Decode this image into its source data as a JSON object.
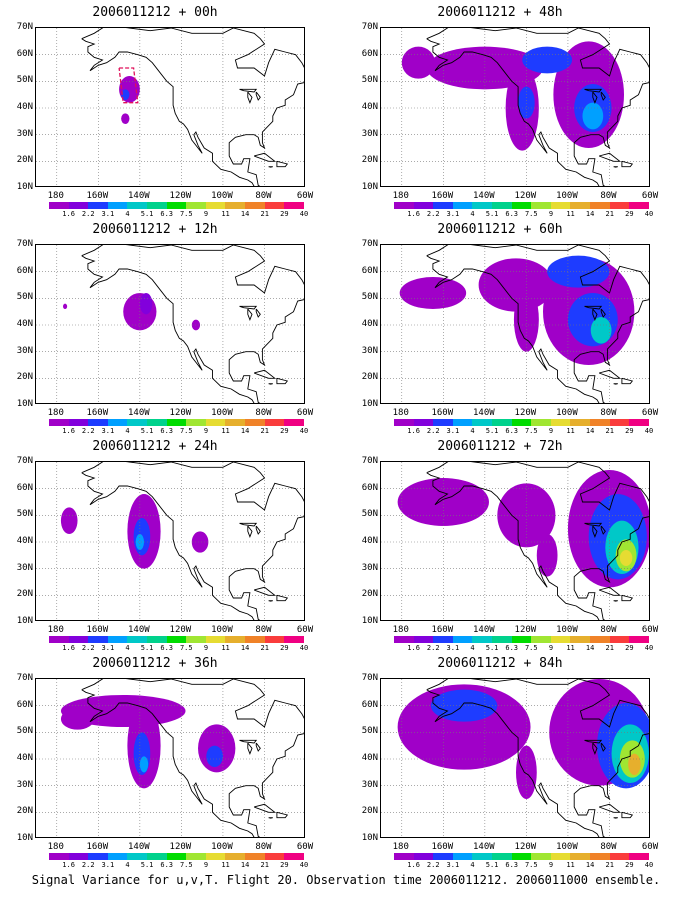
{
  "caption": "Signal Variance for u,v,T. Flight 20. Observation time 2006011212. 2006011000 ensemble.",
  "y_labels": [
    "70N",
    "60N",
    "50N",
    "40N",
    "30N",
    "20N",
    "10N"
  ],
  "x_labels": [
    "180",
    "160W",
    "140W",
    "120W",
    "100W",
    "80W",
    "60W"
  ],
  "colorbar_labels": [
    "1.6",
    "2.2",
    "3.1",
    "4",
    "5.1",
    "6.3",
    "7.5",
    "9",
    "11",
    "14",
    "21",
    "29",
    "40"
  ],
  "colorbar_colors": [
    "#a000c8",
    "#8200dc",
    "#1e3cff",
    "#00a0ff",
    "#00c8c8",
    "#00d28c",
    "#00dc00",
    "#a0e632",
    "#e6dc32",
    "#e6af2d",
    "#f08228",
    "#fa3c3c",
    "#f00082"
  ],
  "panels": [
    {
      "title": "2006011212 + 00h",
      "blobs": [
        {
          "lon": -145,
          "lat": 47,
          "rx": 5,
          "ry": 5,
          "level": 0
        },
        {
          "lon": -147,
          "lat": 45,
          "rx": 2,
          "ry": 2,
          "level": 2
        },
        {
          "lon": -147,
          "lat": 36,
          "rx": 2,
          "ry": 2,
          "level": 0
        }
      ],
      "box": true
    },
    {
      "title": "2006011212 + 12h",
      "blobs": [
        {
          "lon": -140,
          "lat": 45,
          "rx": 8,
          "ry": 7,
          "level": 0
        },
        {
          "lon": -137,
          "lat": 48,
          "rx": 3,
          "ry": 4,
          "level": 1
        },
        {
          "lon": -113,
          "lat": 40,
          "rx": 2,
          "ry": 2,
          "level": 0
        },
        {
          "lon": -176,
          "lat": 47,
          "rx": 1,
          "ry": 1,
          "level": 0
        }
      ]
    },
    {
      "title": "2006011212 + 24h",
      "blobs": [
        {
          "lon": -174,
          "lat": 48,
          "rx": 4,
          "ry": 5,
          "level": 0
        },
        {
          "lon": -138,
          "lat": 44,
          "rx": 8,
          "ry": 14,
          "level": 0
        },
        {
          "lon": -139,
          "lat": 42,
          "rx": 4,
          "ry": 7,
          "level": 2
        },
        {
          "lon": -140,
          "lat": 40,
          "rx": 2,
          "ry": 3,
          "level": 3
        },
        {
          "lon": -111,
          "lat": 40,
          "rx": 4,
          "ry": 4,
          "level": 0
        }
      ]
    },
    {
      "title": "2006011212 + 36h",
      "blobs": [
        {
          "lon": -170,
          "lat": 55,
          "rx": 8,
          "ry": 4,
          "level": 0
        },
        {
          "lon": -148,
          "lat": 58,
          "rx": 30,
          "ry": 6,
          "level": 0
        },
        {
          "lon": -138,
          "lat": 45,
          "rx": 8,
          "ry": 16,
          "level": 0
        },
        {
          "lon": -139,
          "lat": 42,
          "rx": 4,
          "ry": 8,
          "level": 2
        },
        {
          "lon": -138,
          "lat": 38,
          "rx": 2,
          "ry": 3,
          "level": 3
        },
        {
          "lon": -103,
          "lat": 44,
          "rx": 9,
          "ry": 9,
          "level": 0
        },
        {
          "lon": -104,
          "lat": 41,
          "rx": 4,
          "ry": 4,
          "level": 2
        }
      ]
    },
    {
      "title": "2006011212 + 48h",
      "blobs": [
        {
          "lon": -172,
          "lat": 57,
          "rx": 8,
          "ry": 6,
          "level": 0
        },
        {
          "lon": -140,
          "lat": 55,
          "rx": 28,
          "ry": 8,
          "level": 0
        },
        {
          "lon": -122,
          "lat": 40,
          "rx": 8,
          "ry": 16,
          "level": 0
        },
        {
          "lon": -120,
          "lat": 42,
          "rx": 4,
          "ry": 6,
          "level": 2
        },
        {
          "lon": -90,
          "lat": 45,
          "rx": 17,
          "ry": 20,
          "level": 0
        },
        {
          "lon": -88,
          "lat": 40,
          "rx": 9,
          "ry": 9,
          "level": 2
        },
        {
          "lon": -88,
          "lat": 37,
          "rx": 5,
          "ry": 5,
          "level": 3
        },
        {
          "lon": -110,
          "lat": 58,
          "rx": 12,
          "ry": 5,
          "level": 2
        }
      ]
    },
    {
      "title": "2006011212 + 60h",
      "blobs": [
        {
          "lon": -165,
          "lat": 52,
          "rx": 16,
          "ry": 6,
          "level": 0
        },
        {
          "lon": -125,
          "lat": 55,
          "rx": 18,
          "ry": 10,
          "level": 0
        },
        {
          "lon": -120,
          "lat": 42,
          "rx": 6,
          "ry": 12,
          "level": 0
        },
        {
          "lon": -90,
          "lat": 45,
          "rx": 22,
          "ry": 20,
          "level": 0
        },
        {
          "lon": -88,
          "lat": 42,
          "rx": 12,
          "ry": 10,
          "level": 2
        },
        {
          "lon": -84,
          "lat": 38,
          "rx": 5,
          "ry": 5,
          "level": 4
        },
        {
          "lon": -95,
          "lat": 60,
          "rx": 15,
          "ry": 6,
          "level": 2
        }
      ]
    },
    {
      "title": "2006011212 + 72h",
      "blobs": [
        {
          "lon": -160,
          "lat": 55,
          "rx": 22,
          "ry": 9,
          "level": 0
        },
        {
          "lon": -120,
          "lat": 50,
          "rx": 14,
          "ry": 12,
          "level": 0
        },
        {
          "lon": -110,
          "lat": 35,
          "rx": 5,
          "ry": 8,
          "level": 0
        },
        {
          "lon": -80,
          "lat": 45,
          "rx": 20,
          "ry": 22,
          "level": 0
        },
        {
          "lon": -76,
          "lat": 42,
          "rx": 14,
          "ry": 16,
          "level": 2
        },
        {
          "lon": -74,
          "lat": 38,
          "rx": 8,
          "ry": 10,
          "level": 4
        },
        {
          "lon": -72,
          "lat": 35,
          "rx": 5,
          "ry": 6,
          "level": 7
        },
        {
          "lon": -72,
          "lat": 34,
          "rx": 3,
          "ry": 3,
          "level": 8
        }
      ]
    },
    {
      "title": "2006011212 + 84h",
      "blobs": [
        {
          "lon": -150,
          "lat": 52,
          "rx": 32,
          "ry": 16,
          "level": 0
        },
        {
          "lon": -150,
          "lat": 60,
          "rx": 16,
          "ry": 6,
          "level": 2
        },
        {
          "lon": -120,
          "lat": 35,
          "rx": 5,
          "ry": 10,
          "level": 0
        },
        {
          "lon": -85,
          "lat": 50,
          "rx": 24,
          "ry": 20,
          "level": 0
        },
        {
          "lon": -72,
          "lat": 45,
          "rx": 14,
          "ry": 16,
          "level": 2
        },
        {
          "lon": -70,
          "lat": 42,
          "rx": 9,
          "ry": 11,
          "level": 4
        },
        {
          "lon": -69,
          "lat": 40,
          "rx": 6,
          "ry": 7,
          "level": 7
        },
        {
          "lon": -68,
          "lat": 38,
          "rx": 3,
          "ry": 4,
          "level": 9
        }
      ]
    }
  ]
}
